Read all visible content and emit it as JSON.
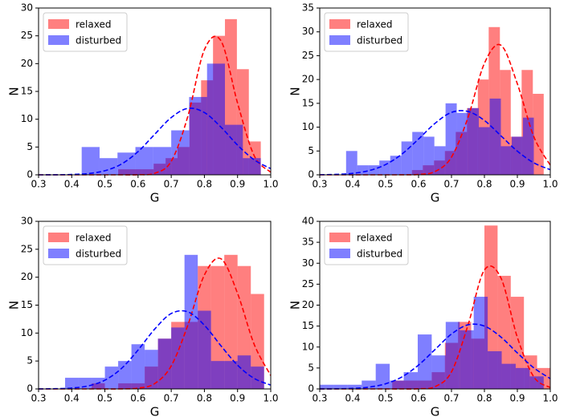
{
  "chart_data": [
    {
      "type": "histogram",
      "xlabel": "G",
      "ylabel": "N",
      "legend": "upper left",
      "xlim": [
        0.3,
        1
      ],
      "ylim": [
        0,
        30
      ],
      "xticks": [
        0.3,
        0.4,
        0.5,
        0.6,
        0.7,
        0.8,
        0.9,
        {
          "value": 1,
          "label": "1.0"
        }
      ],
      "yticks": [
        0,
        5,
        10,
        15,
        20,
        25,
        30
      ],
      "series": [
        {
          "name": "relaxed",
          "color": "#ff0000",
          "alpha": 0.5,
          "bins": [
            0.54,
            0.576,
            0.612,
            0.647,
            0.683,
            0.719,
            0.755,
            0.79,
            0.826,
            0.862,
            0.898,
            0.934,
            0.97
          ],
          "values": [
            1,
            1,
            1,
            2,
            3,
            5,
            13,
            17,
            25,
            28,
            19,
            6
          ]
        },
        {
          "name": "disturbed",
          "color": "#0000ff",
          "alpha": 0.5,
          "bins": [
            0.43,
            0.484,
            0.538,
            0.592,
            0.646,
            0.7,
            0.754,
            0.808,
            0.862,
            0.916,
            0.97
          ],
          "values": [
            5,
            3,
            4,
            5,
            5,
            8,
            14,
            20,
            9,
            3
          ]
        }
      ],
      "curves": [
        {
          "color": "#ff0000",
          "linestyle": "dashed",
          "x": [
            0.3,
            0.35,
            0.4,
            0.45,
            0.5,
            0.55,
            0.6,
            0.65,
            0.7,
            0.75,
            0.8,
            0.85,
            0.9,
            0.95,
            1
          ],
          "values": [
            0,
            0,
            0,
            0,
            0,
            0,
            0.02,
            0.28,
            2.43,
            10.5,
            22.5,
            24.1,
            12.9,
            3.45,
            0.46
          ]
        },
        {
          "color": "#0000ff",
          "linestyle": "dashed",
          "x": [
            0.3,
            0.35,
            0.4,
            0.45,
            0.5,
            0.55,
            0.6,
            0.65,
            0.7,
            0.75,
            0.8,
            0.85,
            0.9,
            0.95,
            1
          ],
          "values": [
            0,
            0.01,
            0.06,
            0.23,
            0.74,
            1.94,
            4.17,
            7.28,
            10.3,
            11.95,
            11.2,
            8.58,
            5.34,
            2.7,
            1.11
          ]
        }
      ]
    },
    {
      "type": "histogram",
      "xlabel": "G",
      "ylabel": "N",
      "legend": "upper left",
      "xlim": [
        0.3,
        1
      ],
      "ylim": [
        0,
        35
      ],
      "xticks": [
        0.3,
        0.4,
        0.5,
        0.6,
        0.7,
        0.8,
        0.9,
        {
          "value": 1,
          "label": "1.0"
        }
      ],
      "yticks": [
        0,
        5,
        10,
        15,
        20,
        25,
        30,
        35
      ],
      "series": [
        {
          "name": "relaxed",
          "color": "#ff0000",
          "alpha": 0.5,
          "bins": [
            0.58,
            0.613,
            0.647,
            0.68,
            0.713,
            0.747,
            0.78,
            0.813,
            0.847,
            0.88,
            0.913,
            0.947,
            0.98
          ],
          "values": [
            1,
            2,
            3,
            5,
            9,
            14,
            20,
            31,
            22,
            8,
            22,
            17
          ]
        },
        {
          "name": "disturbed",
          "color": "#0000ff",
          "alpha": 0.5,
          "bins": [
            0.38,
            0.414,
            0.447,
            0.481,
            0.514,
            0.548,
            0.581,
            0.615,
            0.648,
            0.682,
            0.716,
            0.749,
            0.783,
            0.816,
            0.85,
            0.883,
            0.917,
            0.95
          ],
          "values": [
            5,
            2,
            2,
            3,
            4,
            7,
            9,
            8,
            6,
            15,
            13,
            14,
            10,
            16,
            6,
            8,
            12
          ]
        }
      ],
      "curves": [
        {
          "color": "#ff0000",
          "linestyle": "dashed",
          "x": [
            0.3,
            0.35,
            0.4,
            0.45,
            0.5,
            0.55,
            0.6,
            0.65,
            0.7,
            0.75,
            0.8,
            0.85,
            0.9,
            0.95,
            1
          ],
          "values": [
            0,
            0,
            0,
            0,
            0,
            0.01,
            0.08,
            0.69,
            3.72,
            12,
            23.4,
            27.2,
            19.1,
            8,
            2.02
          ]
        },
        {
          "color": "#0000ff",
          "linestyle": "dashed",
          "x": [
            0.3,
            0.35,
            0.4,
            0.45,
            0.5,
            0.55,
            0.6,
            0.65,
            0.7,
            0.75,
            0.8,
            0.85,
            0.9,
            0.95,
            1
          ],
          "values": [
            0.02,
            0.09,
            0.31,
            0.89,
            2.15,
            4.38,
            7.5,
            10.8,
            13.1,
            13.3,
            11.4,
            8.19,
            4.96,
            2.52,
            1.07
          ]
        }
      ]
    },
    {
      "type": "histogram",
      "xlabel": "G",
      "ylabel": "N",
      "legend": "upper left",
      "xlim": [
        0.3,
        1
      ],
      "ylim": [
        0,
        30
      ],
      "xticks": [
        0.3,
        0.4,
        0.5,
        0.6,
        0.7,
        0.8,
        0.9,
        {
          "value": 1,
          "label": "1.0"
        }
      ],
      "yticks": [
        0,
        5,
        10,
        15,
        20,
        25,
        30
      ],
      "series": [
        {
          "name": "relaxed",
          "color": "#ff0000",
          "alpha": 0.5,
          "bins": [
            0.46,
            0.5,
            0.54,
            0.58,
            0.62,
            0.66,
            0.7,
            0.74,
            0.78,
            0.82,
            0.86,
            0.9,
            0.94,
            0.98
          ],
          "values": [
            1,
            0,
            1,
            1,
            4,
            9,
            12,
            12,
            22,
            22,
            24,
            22,
            17
          ]
        },
        {
          "name": "disturbed",
          "color": "#0000ff",
          "alpha": 0.5,
          "bins": [
            0.38,
            0.42,
            0.46,
            0.5,
            0.54,
            0.58,
            0.62,
            0.66,
            0.7,
            0.74,
            0.78,
            0.82,
            0.86,
            0.9,
            0.94,
            0.98
          ],
          "values": [
            2,
            2,
            2,
            4,
            5,
            8,
            7,
            9,
            11,
            24,
            14,
            5,
            5,
            6,
            4
          ]
        }
      ],
      "curves": [
        {
          "color": "#ff0000",
          "linestyle": "dashed",
          "x": [
            0.3,
            0.35,
            0.4,
            0.45,
            0.5,
            0.55,
            0.6,
            0.65,
            0.7,
            0.75,
            0.8,
            0.85,
            0.9,
            0.95,
            1
          ],
          "values": [
            0,
            0,
            0,
            0,
            0,
            0.01,
            0.14,
            0.95,
            4.12,
            11.4,
            20.4,
            23.3,
            17.1,
            8,
            2.41
          ]
        },
        {
          "color": "#0000ff",
          "linestyle": "dashed",
          "x": [
            0.3,
            0.35,
            0.4,
            0.45,
            0.5,
            0.55,
            0.6,
            0.65,
            0.7,
            0.75,
            0.8,
            0.85,
            0.9,
            0.95,
            1
          ],
          "values": [
            0.01,
            0.04,
            0.16,
            0.55,
            1.57,
            3.67,
            6.96,
            10.7,
            13.5,
            13.8,
            11.4,
            7.72,
            4.25,
            1.89,
            0.69
          ]
        }
      ]
    },
    {
      "type": "histogram",
      "xlabel": "G",
      "ylabel": "N",
      "legend": "upper left",
      "xlim": [
        0.3,
        1
      ],
      "ylim": [
        0,
        40
      ],
      "xticks": [
        0.3,
        0.4,
        0.5,
        0.6,
        0.7,
        0.8,
        0.9,
        {
          "value": 1,
          "label": "1.0"
        }
      ],
      "yticks": [
        0,
        5,
        10,
        15,
        20,
        25,
        30,
        35,
        40
      ],
      "series": [
        {
          "name": "relaxed",
          "color": "#ff0000",
          "alpha": 0.5,
          "bins": [
            0.52,
            0.56,
            0.6,
            0.64,
            0.68,
            0.72,
            0.76,
            0.8,
            0.84,
            0.88,
            0.92,
            0.96,
            1
          ],
          "values": [
            2,
            2,
            2,
            4,
            11,
            16,
            12,
            39,
            27,
            22,
            8,
            5
          ]
        },
        {
          "name": "disturbed",
          "color": "#0000ff",
          "alpha": 0.5,
          "bins": [
            0.3,
            0.3425,
            0.385,
            0.4275,
            0.47,
            0.5125,
            0.555,
            0.5975,
            0.64,
            0.6825,
            0.725,
            0.7675,
            0.81,
            0.8525,
            0.895,
            0.9375,
            0.98
          ],
          "values": [
            1,
            1,
            1,
            2,
            6,
            2,
            4,
            13,
            8,
            16,
            14,
            22,
            9,
            6,
            5,
            3
          ]
        }
      ],
      "curves": [
        {
          "color": "#ff0000",
          "linestyle": "dashed",
          "x": [
            0.3,
            0.35,
            0.4,
            0.45,
            0.5,
            0.55,
            0.6,
            0.65,
            0.7,
            0.75,
            0.8,
            0.85,
            0.9,
            0.95,
            1
          ],
          "values": [
            0,
            0,
            0,
            0,
            0,
            0,
            0.04,
            0.54,
            4.06,
            15.2,
            28.4,
            26.5,
            12.3,
            2.87,
            0.33
          ]
        },
        {
          "color": "#0000ff",
          "linestyle": "dashed",
          "x": [
            0.3,
            0.35,
            0.4,
            0.45,
            0.5,
            0.55,
            0.6,
            0.65,
            0.7,
            0.75,
            0.8,
            0.85,
            0.9,
            0.95,
            1
          ],
          "values": [
            0.01,
            0.03,
            0.13,
            0.44,
            1.23,
            2.89,
            5.7,
            9.4,
            13.1,
            15.3,
            15,
            12.4,
            8.6,
            5.03,
            2.46
          ]
        }
      ]
    }
  ]
}
